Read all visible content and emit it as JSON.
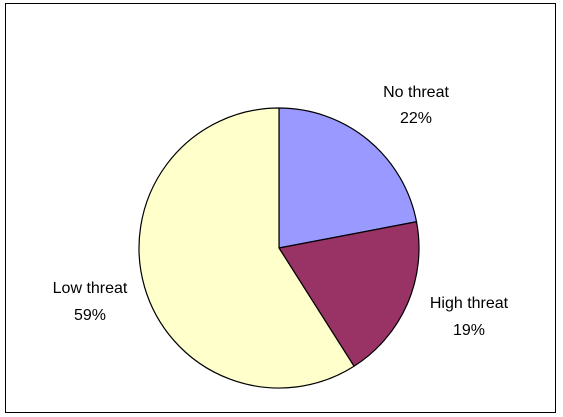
{
  "chart_data": {
    "type": "pie",
    "title": "",
    "slices": [
      {
        "label": "No threat",
        "value": 22,
        "value_label": "22%",
        "color": "#9999ff"
      },
      {
        "label": "High threat",
        "value": 19,
        "value_label": "19%",
        "color": "#993366"
      },
      {
        "label": "Low threat",
        "value": 59,
        "value_label": "59%",
        "color": "#ffffcc"
      }
    ],
    "start": "12 o'clock",
    "direction": "clockwise",
    "legend": "none"
  }
}
